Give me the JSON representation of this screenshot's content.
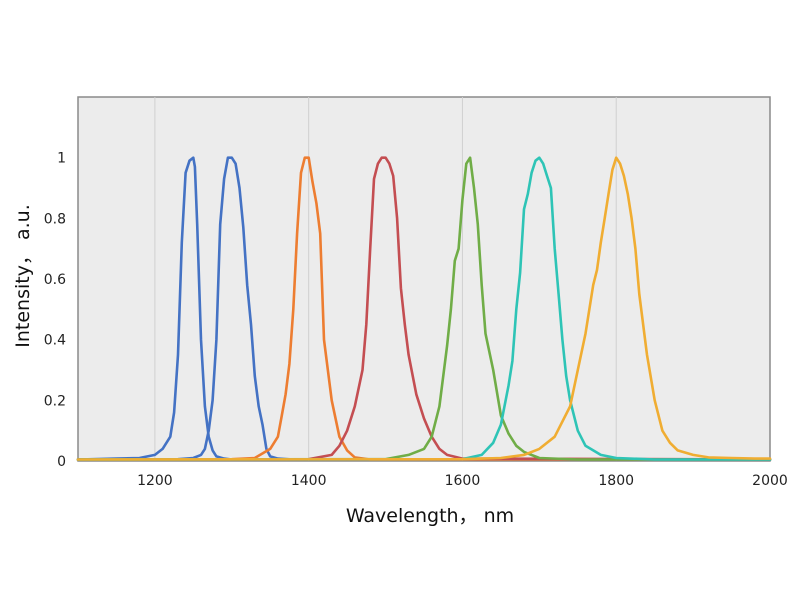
{
  "chart_data": {
    "type": "line",
    "title": "",
    "xlabel": "Wavelength， nm",
    "ylabel": "Intensity， a.u.",
    "xlim": [
      1100,
      2000
    ],
    "ylim": [
      0,
      1.2
    ],
    "xticks": [
      1200,
      1400,
      1600,
      1800,
      2000
    ],
    "yticks": [
      0,
      0.2,
      0.4,
      0.6,
      0.8,
      1
    ],
    "xtick_labels": [
      "1200",
      "1400",
      "1600",
      "1800",
      "2000"
    ],
    "ytick_labels": [
      "0",
      "0.2",
      "0.4",
      "0.6",
      "0.8",
      "1"
    ],
    "grid": "vertical-only",
    "plot_background": "#ececec",
    "legend": "none",
    "series": [
      {
        "color": "#4472c4",
        "x": [
          1100,
          1150,
          1180,
          1200,
          1210,
          1220,
          1225,
          1230,
          1235,
          1240,
          1245,
          1250,
          1252,
          1255,
          1260,
          1265,
          1270,
          1275,
          1280,
          1290,
          1300,
          1320,
          1350,
          1400,
          2000
        ],
        "y": [
          0.005,
          0.008,
          0.01,
          0.02,
          0.04,
          0.08,
          0.16,
          0.35,
          0.72,
          0.95,
          0.99,
          1.0,
          0.97,
          0.78,
          0.4,
          0.18,
          0.08,
          0.035,
          0.015,
          0.008,
          0.005,
          0.005,
          0.005,
          0.005,
          0.005
        ]
      },
      {
        "color": "#4472c4",
        "x": [
          1100,
          1230,
          1250,
          1260,
          1265,
          1270,
          1275,
          1280,
          1285,
          1290,
          1295,
          1300,
          1305,
          1310,
          1315,
          1320,
          1325,
          1330,
          1335,
          1340,
          1345,
          1350,
          1360,
          1380,
          2000
        ],
        "y": [
          0.005,
          0.006,
          0.01,
          0.02,
          0.04,
          0.1,
          0.2,
          0.4,
          0.78,
          0.93,
          1.0,
          1.0,
          0.98,
          0.9,
          0.77,
          0.58,
          0.45,
          0.28,
          0.18,
          0.12,
          0.04,
          0.015,
          0.008,
          0.005,
          0.005
        ]
      },
      {
        "color": "#ed7d31",
        "x": [
          1100,
          1300,
          1330,
          1350,
          1360,
          1365,
          1370,
          1375,
          1380,
          1385,
          1390,
          1395,
          1400,
          1405,
          1410,
          1415,
          1420,
          1430,
          1440,
          1450,
          1460,
          1480,
          2000
        ],
        "y": [
          0.005,
          0.006,
          0.01,
          0.04,
          0.08,
          0.15,
          0.22,
          0.32,
          0.5,
          0.75,
          0.95,
          1.0,
          1.0,
          0.92,
          0.85,
          0.75,
          0.4,
          0.2,
          0.08,
          0.035,
          0.012,
          0.005,
          0.005
        ]
      },
      {
        "color": "#c44e52",
        "x": [
          1100,
          1400,
          1430,
          1440,
          1450,
          1460,
          1470,
          1475,
          1480,
          1485,
          1490,
          1495,
          1500,
          1505,
          1510,
          1515,
          1520,
          1525,
          1530,
          1540,
          1550,
          1560,
          1570,
          1580,
          1600,
          2000
        ],
        "y": [
          0.005,
          0.006,
          0.02,
          0.05,
          0.1,
          0.18,
          0.3,
          0.45,
          0.7,
          0.93,
          0.98,
          1.0,
          1.0,
          0.98,
          0.94,
          0.8,
          0.57,
          0.45,
          0.35,
          0.22,
          0.14,
          0.08,
          0.04,
          0.02,
          0.008,
          0.005
        ]
      },
      {
        "color": "#70ad47",
        "x": [
          1100,
          1500,
          1530,
          1550,
          1560,
          1570,
          1580,
          1585,
          1590,
          1595,
          1600,
          1605,
          1610,
          1615,
          1620,
          1625,
          1630,
          1640,
          1650,
          1660,
          1670,
          1680,
          1700,
          1750,
          2000
        ],
        "y": [
          0.005,
          0.006,
          0.02,
          0.04,
          0.08,
          0.18,
          0.38,
          0.5,
          0.66,
          0.7,
          0.86,
          0.98,
          1.0,
          0.9,
          0.78,
          0.58,
          0.42,
          0.3,
          0.15,
          0.09,
          0.05,
          0.03,
          0.01,
          0.005,
          0.005
        ]
      },
      {
        "color": "#2ec4b6",
        "x": [
          1100,
          1600,
          1625,
          1640,
          1650,
          1660,
          1665,
          1670,
          1675,
          1680,
          1685,
          1690,
          1695,
          1700,
          1705,
          1710,
          1715,
          1720,
          1725,
          1730,
          1735,
          1740,
          1750,
          1760,
          1780,
          1800,
          1850,
          2000
        ],
        "y": [
          0.005,
          0.006,
          0.02,
          0.06,
          0.12,
          0.25,
          0.33,
          0.5,
          0.62,
          0.83,
          0.88,
          0.95,
          0.99,
          1.0,
          0.98,
          0.94,
          0.9,
          0.7,
          0.55,
          0.4,
          0.28,
          0.2,
          0.1,
          0.05,
          0.02,
          0.01,
          0.005,
          0.005
        ]
      },
      {
        "color": "#f0ad32",
        "x": [
          1100,
          1600,
          1650,
          1680,
          1700,
          1720,
          1740,
          1750,
          1760,
          1770,
          1775,
          1780,
          1785,
          1790,
          1795,
          1800,
          1805,
          1810,
          1815,
          1820,
          1825,
          1830,
          1840,
          1850,
          1860,
          1870,
          1880,
          1900,
          1920,
          1950,
          1980,
          2000
        ],
        "y": [
          0.005,
          0.006,
          0.01,
          0.02,
          0.04,
          0.08,
          0.18,
          0.3,
          0.42,
          0.58,
          0.63,
          0.72,
          0.8,
          0.88,
          0.96,
          1.0,
          0.98,
          0.94,
          0.88,
          0.8,
          0.7,
          0.55,
          0.35,
          0.2,
          0.1,
          0.06,
          0.035,
          0.02,
          0.012,
          0.01,
          0.008,
          0.008
        ]
      }
    ]
  }
}
